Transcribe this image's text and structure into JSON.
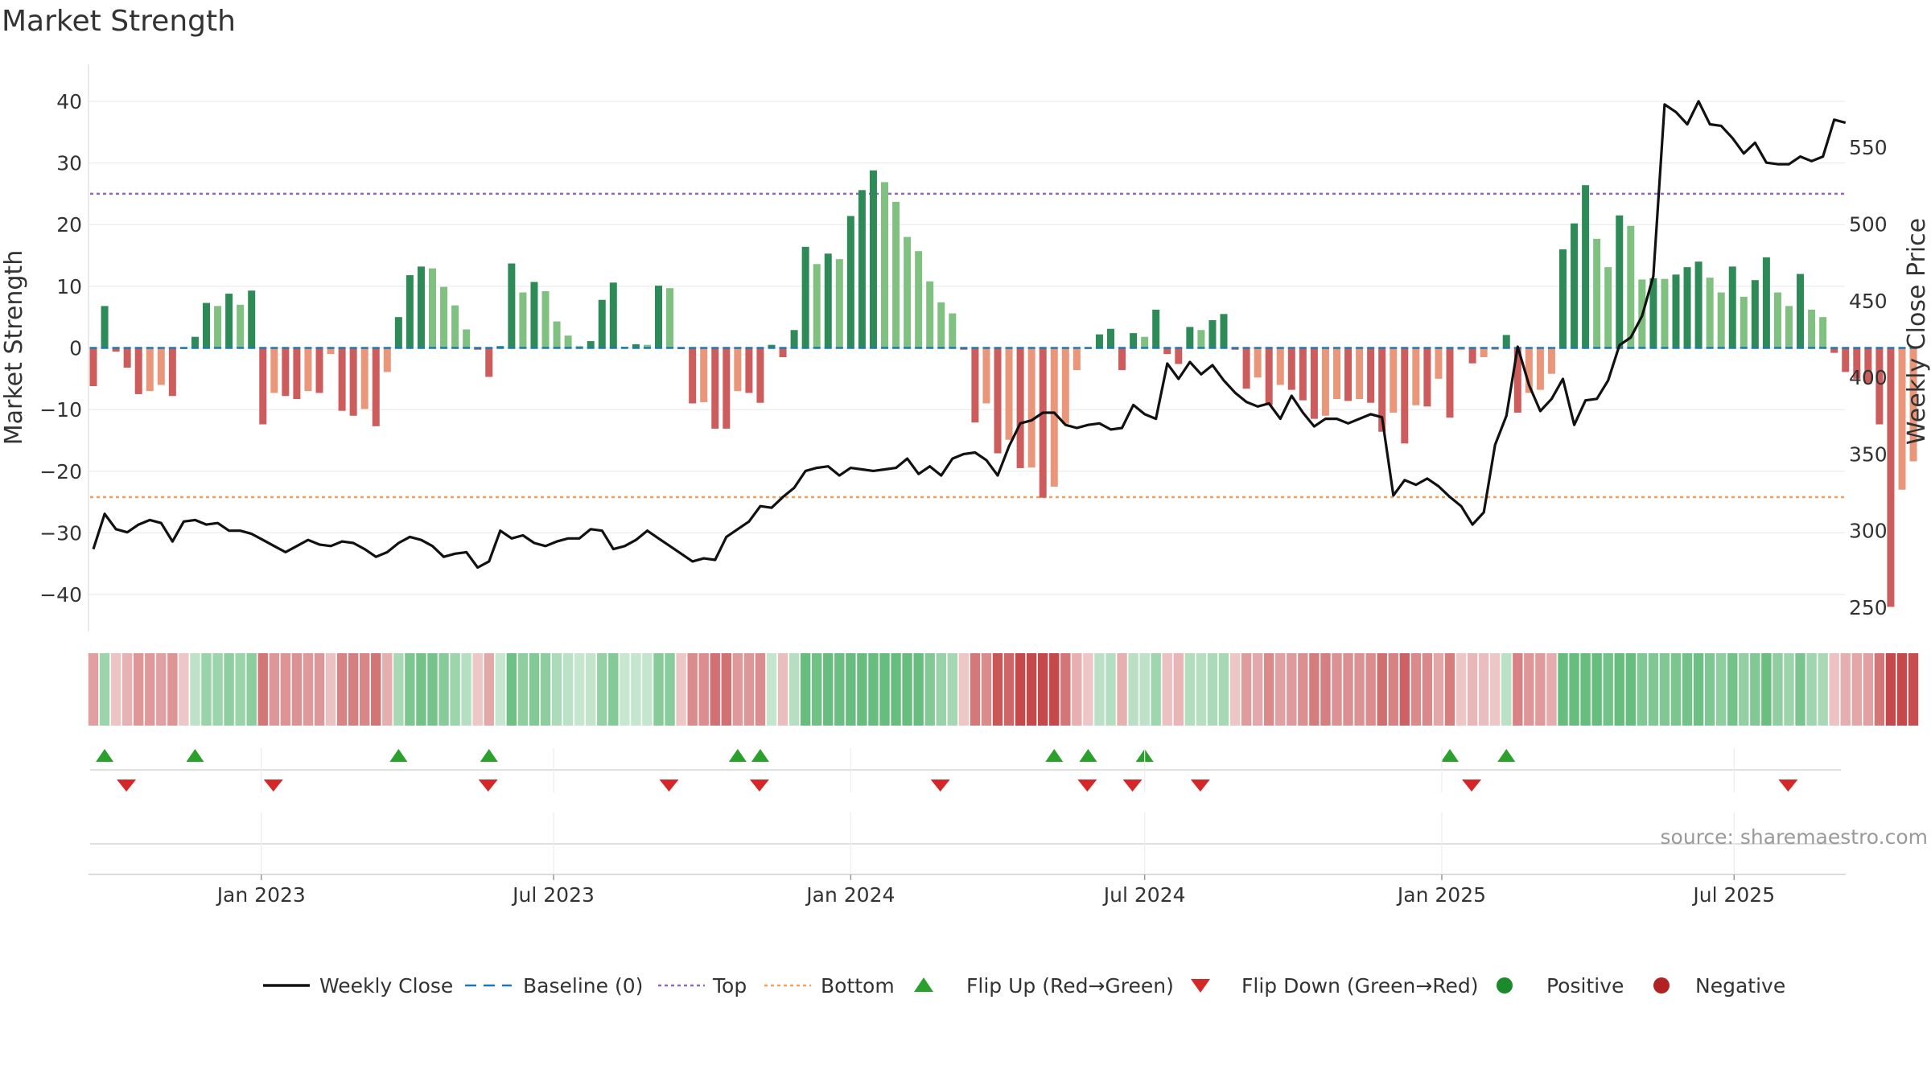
{
  "chart_data": {
    "type": "bar",
    "title": "Market Strength",
    "source": "source: sharemaestro.com",
    "left_axis": {
      "label": "Market Strength",
      "ylim": [
        -46,
        46
      ],
      "ticks": [
        40,
        30,
        20,
        10,
        0,
        -10,
        -20,
        -30,
        -40
      ],
      "tick_labels": [
        "40",
        "30",
        "20",
        "10",
        "0",
        "−10",
        "−20",
        "−30",
        "−40"
      ]
    },
    "right_axis": {
      "label": "Weekly Close Price",
      "ylim": [
        234.3,
        604.1
      ],
      "ticks": [
        550,
        500,
        450,
        400,
        350,
        300,
        250
      ],
      "tick_labels": [
        "550",
        "500",
        "450",
        "400",
        "350",
        "300",
        "250"
      ]
    },
    "x_axis": {
      "start": "2022-09-19",
      "end": "2025-09-29",
      "ticks": [
        "2023-01-01",
        "2023-07-01",
        "2024-01-01",
        "2024-07-01",
        "2025-01-01",
        "2025-07-01"
      ],
      "tick_labels": [
        "Jan 2023",
        "Jul 2023",
        "Jan 2024",
        "Jul 2024",
        "Jan 2025",
        "Jul 2025"
      ]
    },
    "reference_lines": {
      "top": 25,
      "bottom": -24.2,
      "baseline": 0
    },
    "grid": true,
    "legend_position": "bottom",
    "colors": {
      "strong_pos": "#2e8b57",
      "weak_pos": "#80c080",
      "strong_neg": "#cd5c5c",
      "weak_neg": "#e9967a",
      "price": "#111111",
      "top": "#9467bd",
      "bottom": "#f0a060",
      "baseline": "#1f77b4",
      "flip_up": "#2ca02c",
      "flip_down": "#d62728",
      "positive_dot": "#1a8a2a",
      "negative_dot": "#b22222"
    },
    "series": [
      {
        "name": "Weekly Close",
        "type": "line",
        "axis": "right",
        "start_week": 0,
        "values": [
          288,
          311,
          301,
          299,
          304,
          307,
          305,
          293,
          306,
          307,
          304,
          305,
          300,
          300,
          298,
          294,
          290,
          286,
          290,
          294,
          291,
          290,
          293,
          292,
          288,
          283,
          286,
          292,
          296,
          294,
          290,
          283,
          285,
          286,
          276,
          280,
          300,
          295,
          297,
          292,
          290,
          293,
          295,
          295,
          301,
          300,
          288,
          290,
          294,
          300,
          295,
          290,
          285,
          280,
          282,
          281,
          296,
          301,
          306,
          316,
          315,
          322,
          328,
          339,
          341,
          342,
          336,
          341,
          340,
          339,
          340,
          341,
          347,
          337,
          342,
          336,
          347,
          350,
          351,
          346,
          336,
          355,
          370,
          372,
          377,
          377,
          369,
          367,
          369,
          370,
          366,
          367,
          382,
          376,
          373,
          409,
          399,
          410,
          402,
          408,
          398,
          390,
          384,
          381,
          383,
          373,
          388,
          377,
          368,
          373,
          373,
          370,
          373,
          376,
          374,
          323,
          333,
          330,
          334,
          329,
          322,
          316,
          304,
          312,
          356,
          375,
          420,
          395,
          378,
          386,
          399,
          369,
          385,
          386,
          398,
          421,
          426,
          440,
          466,
          578,
          573,
          565,
          580,
          565,
          564,
          556,
          546,
          553,
          540,
          539,
          539,
          544,
          541,
          544,
          568,
          566
        ]
      },
      {
        "name": "Market Strength",
        "type": "bar",
        "axis": "left",
        "values": [
          -6.2,
          6.8,
          -0.6,
          -3.2,
          -7.5,
          -7.0,
          -6.0,
          -7.8,
          -0.2,
          1.8,
          7.3,
          6.8,
          8.8,
          7.0,
          9.3,
          -12.4,
          -7.3,
          -7.8,
          -8.3,
          -7.0,
          -7.3,
          -1.0,
          -10.2,
          -11.0,
          -9.9,
          -12.7,
          -3.9,
          5.0,
          11.8,
          13.2,
          12.9,
          9.9,
          6.9,
          3.0,
          -0.3,
          -4.7,
          0.3,
          13.7,
          9.0,
          10.7,
          9.2,
          4.3,
          2.0,
          0.3,
          1.1,
          7.8,
          10.6,
          0.2,
          0.6,
          0.5,
          10.1,
          9.7,
          -0.2,
          -9.0,
          -8.8,
          -13.1,
          -13.1,
          -7.0,
          -7.3,
          -8.9,
          0.5,
          -1.5,
          2.9,
          16.4,
          13.6,
          15.3,
          14.4,
          21.4,
          25.6,
          28.8,
          26.9,
          23.7,
          18.0,
          15.7,
          10.8,
          7.4,
          5.6,
          -0.3,
          -12.1,
          -9.0,
          -17.1,
          -14.9,
          -19.5,
          -19.4,
          -24.3,
          -22.5,
          -12.3,
          -3.6,
          -0.2,
          2.2,
          3.1,
          -3.6,
          2.4,
          1.8,
          6.2,
          -1.0,
          -2.6,
          3.4,
          2.9,
          4.5,
          5.5,
          -0.3,
          -6.6,
          -4.8,
          -9.3,
          -6.0,
          -6.8,
          -8.5,
          -11.5,
          -11.0,
          -8.3,
          -8.6,
          -8.3,
          -8.9,
          -13.6,
          -10.5,
          -15.5,
          -9.3,
          -9.5,
          -5.0,
          -11.3,
          -0.3,
          -2.5,
          -1.5,
          -0.3,
          2.1,
          -10.5,
          -7.3,
          -6.8,
          -4.2,
          16.0,
          20.2,
          26.4,
          17.7,
          13.1,
          21.5,
          19.8,
          11.1,
          11.3,
          11.2,
          11.9,
          13.1,
          14.0,
          11.4,
          9.0,
          13.2,
          8.3,
          11.0,
          14.7,
          9.0,
          6.8,
          12.0,
          6.2,
          5.0,
          -0.8,
          -3.9,
          -5.0,
          -5.8,
          -12.4,
          -42.0,
          -23.0,
          -18.4
        ]
      }
    ],
    "band": {
      "description_values": "intensity follows market strength per week"
    },
    "flips_up_weeks": [
      1,
      9,
      27,
      35,
      57,
      59,
      85,
      88,
      93,
      120,
      125
    ],
    "flips_down_weeks": [
      2,
      15,
      34,
      50,
      58,
      74,
      87,
      91,
      97,
      121,
      149
    ]
  },
  "legend": {
    "items": [
      {
        "label": "Weekly Close",
        "kind": "line"
      },
      {
        "label": "Baseline (0)",
        "kind": "dash"
      },
      {
        "label": "Top",
        "kind": "dot-purple"
      },
      {
        "label": "Bottom",
        "kind": "dot-orange"
      },
      {
        "label": "Flip Up (Red→Green)",
        "kind": "tri-up"
      },
      {
        "label": "Flip Down (Green→Red)",
        "kind": "tri-down"
      },
      {
        "label": "Positive",
        "kind": "dot-green"
      },
      {
        "label": "Negative",
        "kind": "dot-red"
      }
    ]
  }
}
